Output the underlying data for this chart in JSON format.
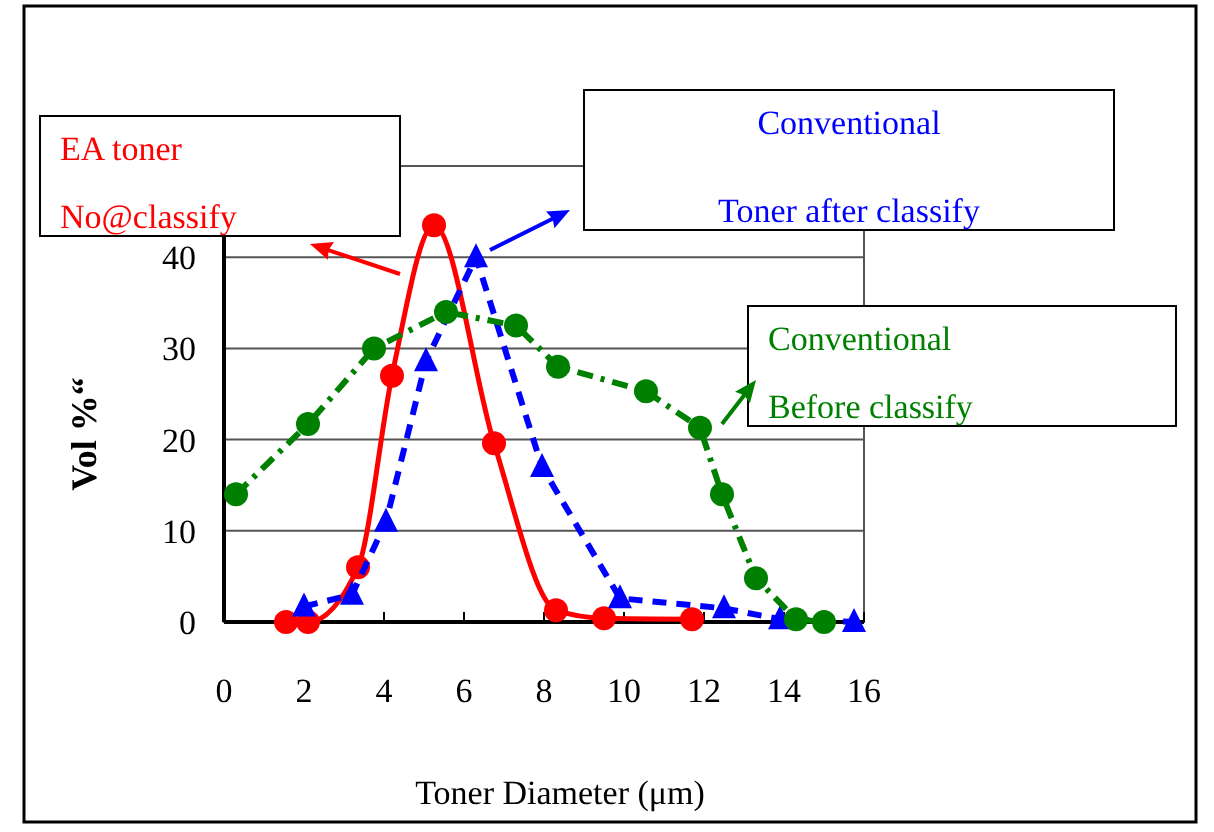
{
  "chart_data": {
    "type": "line",
    "xlabel": "Toner Diameter (μm)",
    "ylabel": "Vol %“",
    "xlim": [
      0,
      16
    ],
    "xticks": [
      0,
      2,
      4,
      6,
      8,
      10,
      12,
      14,
      16
    ],
    "ylim": [
      0,
      50
    ],
    "yticks": [
      0,
      10,
      20,
      30,
      40
    ],
    "grid": "y",
    "series": [
      {
        "name": "EA toner\nNo@classify",
        "color": "#ff0000",
        "line_style": "solid",
        "marker": "circle",
        "x": [
          1.55,
          2.1,
          3.35,
          4.2,
          5.25,
          6.75,
          8.3,
          9.5,
          11.7
        ],
        "values": [
          0,
          0,
          6,
          27,
          43.5,
          19.6,
          1.3,
          0.4,
          0.3
        ]
      },
      {
        "name": "Conventional\nToner after classify",
        "color": "#0000ff",
        "line_style": "dashed",
        "marker": "triangle",
        "x": [
          2,
          3.2,
          4.05,
          5.05,
          6.3,
          7.95,
          9.9,
          12.5,
          13.9,
          15.75
        ],
        "values": [
          1.7,
          3,
          11,
          28.6,
          40,
          17,
          2.6,
          1.5,
          0.3,
          0
        ]
      },
      {
        "name": "Conventional\nBefore classify",
        "color": "#008000",
        "line_style": "dashdot",
        "marker": "circle",
        "x": [
          0.3,
          2.1,
          3.75,
          5.55,
          7.3,
          8.35,
          10.55,
          11.9,
          12.45,
          13.3,
          14.3,
          15
        ],
        "values": [
          14,
          21.7,
          30,
          34,
          32.5,
          28,
          25.3,
          21.3,
          14,
          4.8,
          0.3,
          0
        ]
      }
    ]
  }
}
